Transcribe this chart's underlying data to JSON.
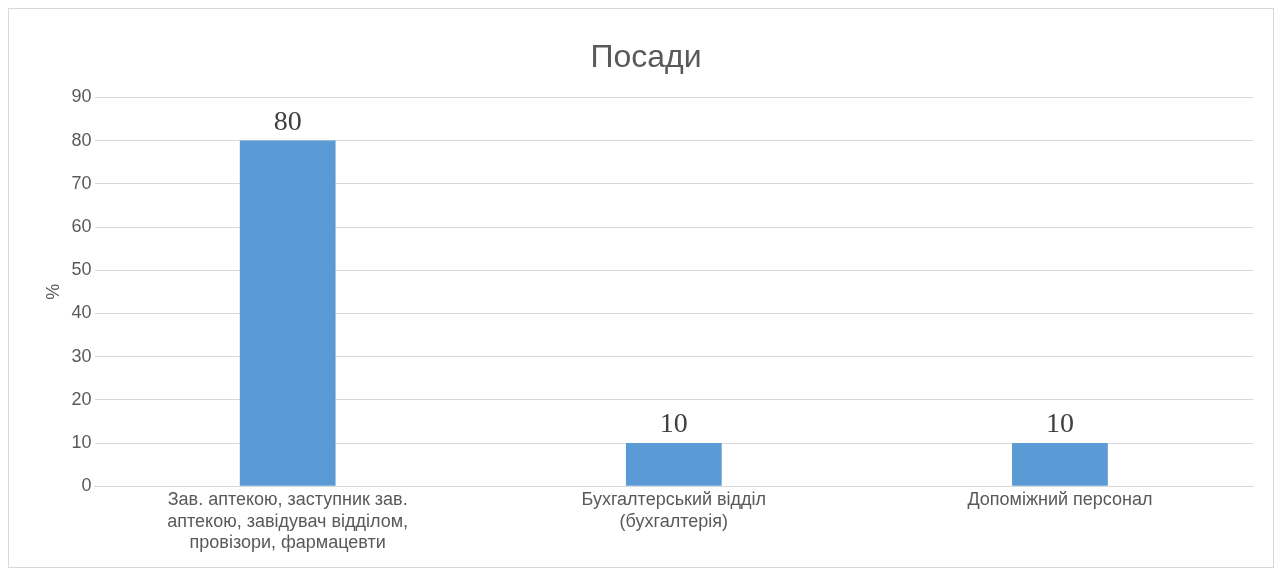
{
  "chart_data": {
    "type": "bar",
    "title": "Посади",
    "ylabel": "%",
    "categories": [
      "Зав. аптекою, заступник зав. аптекою, завідувач відділом, провізори, фармацевти",
      "Бухгалтерський відділ (бухгалтерія)",
      "Допоміжний персонал"
    ],
    "values": [
      80,
      10,
      10
    ],
    "color": "#5b9bd5",
    "ylim": [
      0,
      90
    ],
    "yticks": [
      0,
      10,
      20,
      30,
      40,
      50,
      60,
      70,
      80,
      90
    ],
    "grid": "y",
    "legend": false,
    "data_labels": true
  }
}
